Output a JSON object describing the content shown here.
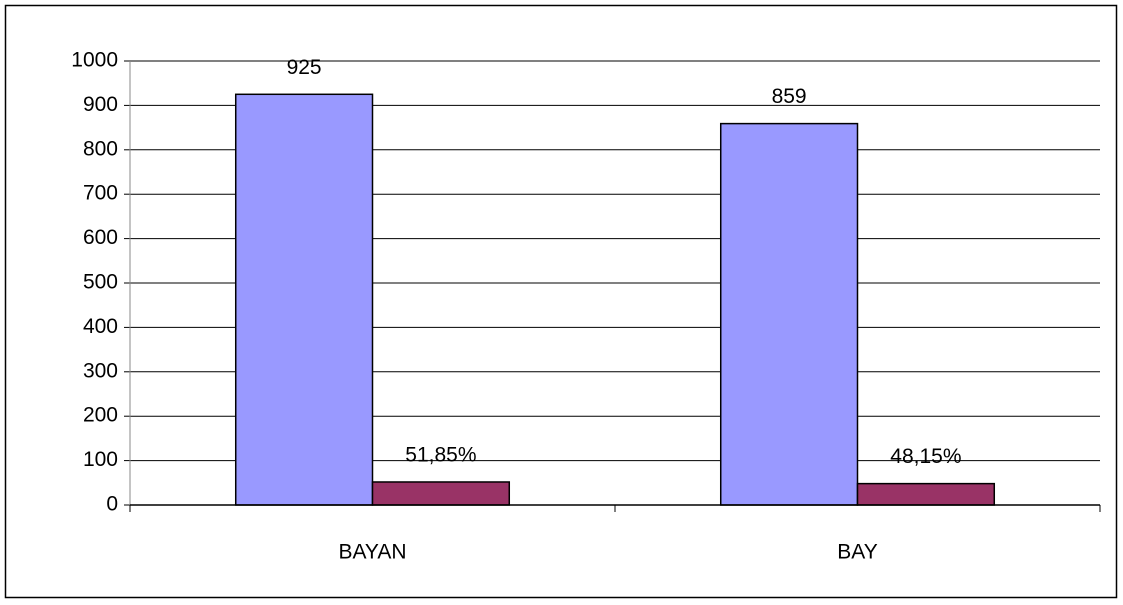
{
  "chart_data": {
    "type": "bar",
    "categories": [
      "BAYAN",
      "BAY"
    ],
    "series": [
      {
        "color": "#9999ff",
        "values": [
          925,
          859
        ]
      },
      {
        "color": "#993366",
        "values": [
          51.85,
          48.15
        ],
        "value_labels": [
          "51,85%",
          "48,15%"
        ]
      }
    ],
    "ylim": [
      0,
      1000
    ],
    "yticks": [
      0,
      100,
      200,
      300,
      400,
      500,
      600,
      700,
      800,
      900,
      1000
    ],
    "grid": true
  }
}
